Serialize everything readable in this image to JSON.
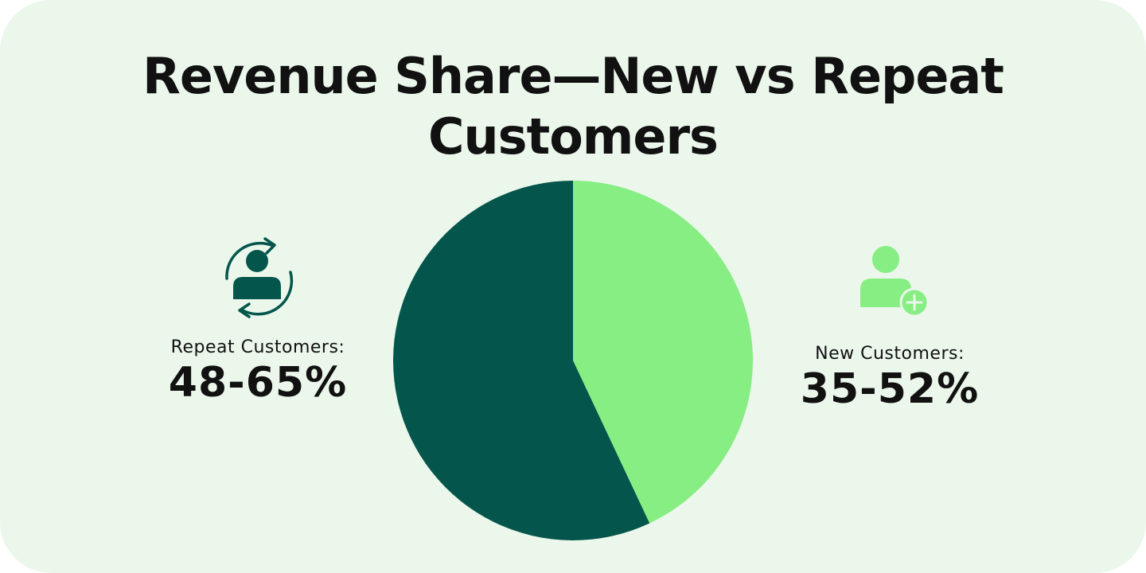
{
  "title": "Revenue Share—New vs Repeat Customers",
  "colors": {
    "background": "#ecf7ec",
    "repeat": "#04564c",
    "new": "#86ee82"
  },
  "repeat": {
    "icon": "repeat-customer-icon",
    "label": "Repeat Customers:",
    "value": "48-65%"
  },
  "new": {
    "icon": "new-customer-icon",
    "label": "New Customers:",
    "value": "35-52%"
  },
  "chart_data": {
    "type": "pie",
    "title": "Revenue Share—New vs Repeat Customers",
    "slices": [
      {
        "name": "New Customers",
        "value": 43,
        "color": "#86ee82"
      },
      {
        "name": "Repeat Customers",
        "value": 57,
        "color": "#04564c"
      }
    ]
  }
}
